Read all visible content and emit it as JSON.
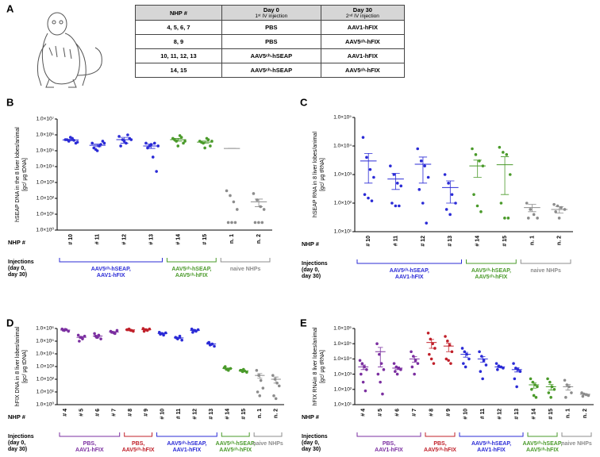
{
  "table": {
    "panel_label": "A",
    "columns": [
      {
        "title": "NHP #"
      },
      {
        "title": "Day 0",
        "subtitle": "1ˢᵗ IV injection"
      },
      {
        "title": "Day 30",
        "subtitle": "2ⁿᵈ IV injection"
      }
    ],
    "rows": [
      [
        "4, 5, 6, 7",
        "PBS",
        "AAV1-hFIX"
      ],
      [
        "8, 9",
        "PBS",
        "AAV5ᶜʰ-hFIX"
      ],
      [
        "10, 11, 12, 13",
        "AAV5ᶜʰ-hSEAP",
        "AAV1-hFIX"
      ],
      [
        "14, 15",
        "AAV5ᶜʰ-hSEAP",
        "AAV5ᶜʰ-hFIX"
      ]
    ]
  },
  "chart_data": [
    {
      "type": "scatter",
      "panel_label": "B",
      "ylabel": [
        "hSEAP DNA in the 8 liver lobes/animal",
        "[gc/ µg tDNA]"
      ],
      "category_label": "NHP #",
      "groups_label": [
        "Injections",
        "(day 0,",
        "day 30)"
      ],
      "log_y": true,
      "ylim": [
        1,
        10000000
      ],
      "yticks": [
        {
          "value": 1,
          "label": "1.0×10⁰"
        },
        {
          "value": 10,
          "label": "1.0×10¹"
        },
        {
          "value": 100,
          "label": "1.0×10²"
        },
        {
          "value": 1000,
          "label": "1.0×10³"
        },
        {
          "value": 10000,
          "label": "1.0×10⁴"
        },
        {
          "value": 100000,
          "label": "1.0×10⁵"
        },
        {
          "value": 1000000,
          "label": "1.0×10⁶"
        },
        {
          "value": 10000000,
          "label": "1.0×10⁷"
        }
      ],
      "categories": [
        "# 10",
        "# 11",
        "# 12",
        "# 13",
        "# 14",
        "# 15",
        "n. 1",
        "n. 2"
      ],
      "colors": [
        "#2b2bd6",
        "#2b2bd6",
        "#2b2bd6",
        "#2b2bd6",
        "#4a9a2a",
        "#4a9a2a",
        "#8c8c8c",
        "#8c8c8c"
      ],
      "values": [
        [
          500000,
          400000,
          600000,
          300000,
          500000,
          700000,
          450000,
          350000
        ],
        [
          300000,
          120000,
          200000,
          400000,
          150000,
          100000,
          250000,
          300000
        ],
        [
          800000,
          500000,
          300000,
          600000,
          200000,
          400000,
          1000000,
          500000
        ],
        [
          300000,
          200000,
          40000,
          5000,
          150000,
          250000,
          300000,
          200000
        ],
        [
          600000,
          400000,
          900000,
          300000,
          500000,
          200000,
          700000,
          400000
        ],
        [
          400000,
          300000,
          600000,
          200000,
          350000,
          150000,
          500000,
          400000
        ],
        [
          300,
          150,
          60,
          20,
          3,
          3,
          3
        ],
        [
          200,
          80,
          30,
          20,
          3,
          3,
          3
        ]
      ],
      "means": [
        480000,
        220000,
        500000,
        200000,
        500000,
        350000,
        140000,
        60
      ],
      "errors": [
        50000,
        40000,
        200000,
        60000,
        100000,
        60000,
        100,
        30
      ],
      "brackets": [
        {
          "label": [
            "AAV5ᶜʰ-hSEAP,",
            "AAV1-hFIX"
          ]
        },
        {
          "label": [
            "AAV5ᶜʰ-hSEAP,",
            "AAV5ᶜʰ-hFIX"
          ]
        },
        {
          "label": [
            "naive NHPs"
          ]
        }
      ]
    },
    {
      "type": "scatter",
      "panel_label": "C",
      "ylabel": [
        "hSEAP RNA in 8 liver lobes/animal",
        "[gc/ µg tRNA]"
      ],
      "category_label": "NHP #",
      "groups_label": [
        "Injections",
        "(day 0,",
        "day 30)"
      ],
      "log_y": true,
      "ylim": [
        10,
        100000
      ],
      "yticks": [
        {
          "value": 10,
          "label": "1.0×10¹"
        },
        {
          "value": 100,
          "label": "1.0×10²"
        },
        {
          "value": 1000,
          "label": "1.0×10³"
        },
        {
          "value": 10000,
          "label": "1.0×10⁴"
        },
        {
          "value": 100000,
          "label": "1.0×10⁵"
        }
      ],
      "categories": [
        "# 10",
        "# 11",
        "# 12",
        "# 13",
        "# 14",
        "# 15",
        "n. 1",
        "n. 2"
      ],
      "colors": [
        "#2b2bd6",
        "#2b2bd6",
        "#2b2bd6",
        "#2b2bd6",
        "#4a9a2a",
        "#4a9a2a",
        "#8c8c8c",
        "#8c8c8c"
      ],
      "values": [
        [
          20000,
          4000,
          1500,
          800,
          200,
          150,
          120
        ],
        [
          2000,
          1000,
          500,
          400,
          100,
          80,
          80
        ],
        [
          8000,
          3000,
          2000,
          800,
          300,
          100,
          20
        ],
        [
          1000,
          500,
          200,
          100,
          60,
          40
        ],
        [
          8000,
          5000,
          3000,
          2000,
          200,
          80,
          50
        ],
        [
          9000,
          6000,
          5000,
          1000,
          100,
          30,
          30
        ],
        [
          100,
          60,
          40,
          30,
          30
        ],
        [
          90,
          80,
          70,
          60,
          50,
          30
        ]
      ],
      "means": [
        3000,
        700,
        2300,
        350,
        2000,
        2200,
        70,
        60
      ],
      "errors": [
        2500,
        400,
        1800,
        250,
        1200,
        2000,
        20,
        15
      ],
      "brackets": [
        {
          "label": [
            "AAV5ᶜʰ-hSEAP,",
            "AAV1-hFIX"
          ]
        },
        {
          "label": [
            "AAV5ᶜʰ-hSEAP,",
            "AAV5ᶜʰ-hFIX"
          ]
        },
        {
          "label": [
            "naive NHPs"
          ]
        }
      ]
    },
    {
      "type": "scatter",
      "panel_label": "D",
      "ylabel": [
        "hFIX DNA in 8 liver lobes/animal",
        "[gc/ µg tDNA]"
      ],
      "category_label": "NHP #",
      "groups_label": [
        "Injections",
        "(day 0,",
        "day 30)"
      ],
      "log_y": true,
      "ylim": [
        1,
        1000000
      ],
      "yticks": [
        {
          "value": 1,
          "label": "1.0×10⁰"
        },
        {
          "value": 10,
          "label": "1.0×10¹"
        },
        {
          "value": 100,
          "label": "1.0×10²"
        },
        {
          "value": 1000,
          "label": "1.0×10³"
        },
        {
          "value": 10000,
          "label": "1.0×10⁴"
        },
        {
          "value": 100000,
          "label": "1.0×10⁵"
        },
        {
          "value": 1000000,
          "label": "1.0×10⁶"
        }
      ],
      "categories": [
        "# 4",
        "# 5",
        "# 6",
        "# 7",
        "# 8",
        "# 9",
        "# 10",
        "# 11",
        "# 12",
        "# 13",
        "# 14",
        "# 15",
        "n. 1",
        "n. 2"
      ],
      "colors": [
        "#7b2fa0",
        "#7b2fa0",
        "#7b2fa0",
        "#7b2fa0",
        "#c0202a",
        "#c0202a",
        "#2b2bd6",
        "#2b2bd6",
        "#2b2bd6",
        "#2b2bd6",
        "#4a9a2a",
        "#4a9a2a",
        "#8c8c8c",
        "#8c8c8c"
      ],
      "values": [
        [
          900000,
          700000,
          800000,
          600000,
          750000,
          850000
        ],
        [
          300000,
          200000,
          150000,
          250000,
          100000,
          200000
        ],
        [
          400000,
          200000,
          300000,
          150000,
          250000,
          200000
        ],
        [
          600000,
          500000,
          400000,
          700000,
          500000,
          450000
        ],
        [
          800000,
          900000,
          700000,
          600000,
          800000,
          750000
        ],
        [
          1000000,
          800000,
          700000,
          900000,
          600000,
          800000
        ],
        [
          500000,
          400000,
          300000,
          450000,
          350000,
          400000
        ],
        [
          200000,
          150000,
          250000,
          120000,
          180000
        ],
        [
          900000,
          700000,
          600000,
          800000,
          500000,
          700000
        ],
        [
          70000,
          50000,
          60000,
          40000,
          80000,
          55000
        ],
        [
          800,
          600,
          500,
          700,
          1000,
          600
        ],
        [
          500,
          400,
          450,
          350,
          500,
          600
        ],
        [
          500,
          200,
          80,
          20,
          10,
          5
        ],
        [
          200,
          100,
          50,
          30,
          5,
          3
        ]
      ],
      "means": [
        750000,
        200000,
        250000,
        520000,
        780000,
        800000,
        400000,
        180000,
        700000,
        60000,
        700,
        450,
        200,
        100
      ],
      "errors": [
        50000,
        30000,
        40000,
        50000,
        50000,
        60000,
        30000,
        20000,
        60000,
        5000,
        80,
        40,
        80,
        50
      ],
      "brackets": [
        {
          "label": [
            "PBS,",
            "AAV1-hFIX"
          ]
        },
        {
          "label": [
            "PBS,",
            "AAV5ᶜʰ-hFIX"
          ]
        },
        {
          "label": [
            "AAV5ᶜʰ-hSEAP,",
            "AAV1-hFIX"
          ]
        },
        {
          "label": [
            "AAV5ᶜʰ-hSEAP,",
            "AAV5ᶜʰ-hFIX"
          ]
        },
        {
          "label": [
            "naive NHPs"
          ]
        }
      ]
    },
    {
      "type": "scatter",
      "panel_label": "E",
      "ylabel": [
        "hFIX RNAin 8 liver lobes/animal",
        "[gc/ µg tRNA]"
      ],
      "category_label": "NHP #",
      "groups_label": [
        "Injections",
        "(day 0,",
        "day 30)"
      ],
      "log_y": true,
      "ylim": [
        10,
        1000000
      ],
      "yticks": [
        {
          "value": 10,
          "label": "1.0×10¹"
        },
        {
          "value": 100,
          "label": "1.0×10²"
        },
        {
          "value": 1000,
          "label": "1.0×10³"
        },
        {
          "value": 10000,
          "label": "1.0×10⁴"
        },
        {
          "value": 100000,
          "label": "1.0×10⁵"
        },
        {
          "value": 1000000,
          "label": "1.0×10⁶"
        }
      ],
      "categories": [
        "# 4",
        "# 5",
        "# 6",
        "# 7",
        "# 8",
        "# 9",
        "# 10",
        "# 11",
        "# 12",
        "# 13",
        "# 14",
        "# 15",
        "n. 1",
        "n. 2"
      ],
      "colors": [
        "#7b2fa0",
        "#7b2fa0",
        "#7b2fa0",
        "#7b2fa0",
        "#c0202a",
        "#c0202a",
        "#2b2bd6",
        "#2b2bd6",
        "#2b2bd6",
        "#2b2bd6",
        "#4a9a2a",
        "#4a9a2a",
        "#8c8c8c",
        "#8c8c8c"
      ],
      "values": [
        [
          8000,
          5000,
          3000,
          2000,
          1000,
          300,
          80
        ],
        [
          100000,
          20000,
          5000,
          2000,
          1000,
          300,
          50
        ],
        [
          5000,
          3000,
          2500,
          2000,
          1500,
          1000
        ],
        [
          30000,
          15000,
          8000,
          5000,
          3000,
          1000
        ],
        [
          500000,
          200000,
          100000,
          50000,
          20000,
          10000,
          5000
        ],
        [
          300000,
          150000,
          80000,
          30000,
          10000,
          8000,
          5000
        ],
        [
          50000,
          30000,
          20000,
          10000,
          5000,
          3000
        ],
        [
          30000,
          15000,
          8000,
          4000,
          1500,
          500
        ],
        [
          5000,
          3500,
          3000,
          2500,
          2000
        ],
        [
          5000,
          2500,
          2000,
          1500,
          500,
          150
        ],
        [
          500,
          300,
          200,
          150,
          100,
          40,
          30
        ],
        [
          500,
          300,
          150,
          100,
          60,
          30
        ],
        [
          400,
          200,
          150,
          60,
          30
        ],
        [
          60,
          50,
          45,
          40,
          35
        ]
      ],
      "means": [
        3000,
        30000,
        2500,
        10000,
        120000,
        70000,
        20000,
        10000,
        3000,
        2000,
        200,
        150,
        150,
        48
      ],
      "errors": [
        1000,
        27000,
        500,
        4000,
        70000,
        40000,
        7000,
        4000,
        400,
        600,
        80,
        60,
        60,
        5
      ],
      "brackets": [
        {
          "label": [
            "PBS,",
            "AAV1-hFIX"
          ]
        },
        {
          "label": [
            "PBS,",
            "AAV5ᶜʰ-hFIX"
          ]
        },
        {
          "label": [
            "AAV5ᶜʰ-hSEAP,",
            "AAV1-hFIX"
          ]
        },
        {
          "label": [
            "AAV5ᶜʰ-hSEAP,",
            "AAV5ᶜʰ-hFIX"
          ]
        },
        {
          "label": [
            "naive NHPs"
          ]
        }
      ]
    }
  ]
}
